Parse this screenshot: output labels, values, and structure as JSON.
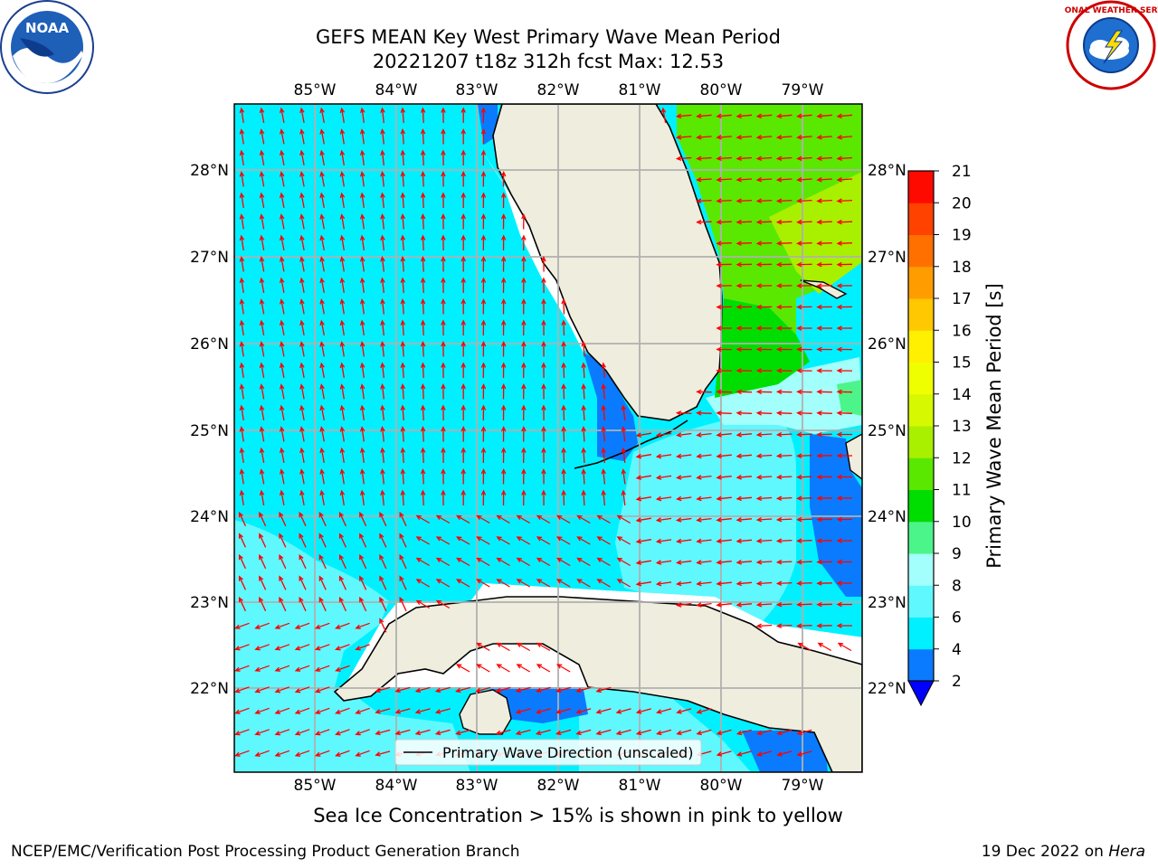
{
  "title_line1": "GEFS MEAN Key West Primary Wave Mean Period",
  "title_line2": "20221207 t18z 312h fcst   Max: 12.53",
  "ice_note": "Sea Ice Concentration > 15% is shown in pink to yellow",
  "footer_left": "NCEP/EMC/Verification Post Processing Product Generation Branch",
  "footer_date": "19 Dec 2022 on",
  "footer_host": "Hera",
  "logos": {
    "left": "NOAA",
    "right": "NATIONAL WEATHER SERVICE"
  },
  "map": {
    "lon_ticks": [
      "85°W",
      "84°W",
      "83°W",
      "82°W",
      "81°W",
      "80°W",
      "79°W"
    ],
    "lat_ticks": [
      "28°N",
      "27°N",
      "26°N",
      "25°N",
      "24°N",
      "23°N",
      "22°N"
    ],
    "legend_label": "Primary Wave Direction (unscaled)",
    "land_color": "#efedde",
    "arrow_color": "#ff0000"
  },
  "colorbar": {
    "label": "Primary Wave Mean Period [s]",
    "ticks": [
      "2",
      "4",
      "6",
      "8",
      "9",
      "10",
      "11",
      "12",
      "13",
      "14",
      "15",
      "16",
      "17",
      "18",
      "19",
      "20",
      "21"
    ],
    "colors": [
      "#0a7bff",
      "#00f0ff",
      "#5ff8ff",
      "#a3fffb",
      "#4cf58a",
      "#00dd00",
      "#5ae800",
      "#a8f000",
      "#d6f800",
      "#f0ff00",
      "#ffef00",
      "#ffc800",
      "#ff9d00",
      "#ff7000",
      "#ff4200",
      "#ff0a00"
    ],
    "under_color": "#0000ff"
  }
}
